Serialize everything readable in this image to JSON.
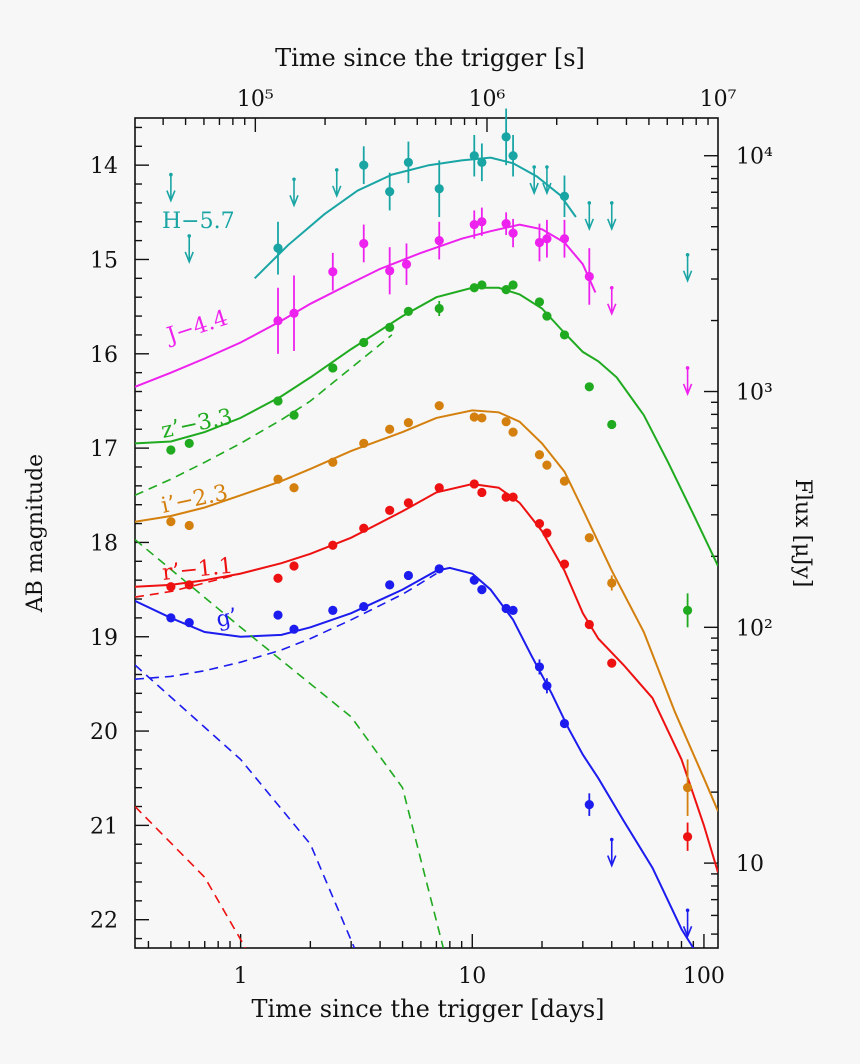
{
  "chart_data": {
    "type": "scatter",
    "xlabel": "Time since the trigger [days]",
    "ylabel": "AB magnitude",
    "x2label": "Time since the trigger [s]",
    "y2label": "Flux [μJy]",
    "x_scale": "log",
    "xlim": [
      0.35,
      115
    ],
    "ylim": [
      22.3,
      13.5
    ],
    "x_ticks": [
      "1",
      "10",
      "100"
    ],
    "y_ticks": [
      "14",
      "15",
      "16",
      "17",
      "18",
      "19",
      "20",
      "21",
      "22"
    ],
    "x2_ticks": [
      "10⁵",
      "10⁶",
      "10⁷"
    ],
    "y2_ticks": [
      "10",
      "10²",
      "10³",
      "10⁴"
    ],
    "colors": {
      "H": "#1aa5a5",
      "J": "#ee22ee",
      "z": "#1faa1f",
      "i": "#d4800e",
      "r": "#ee1111",
      "g": "#1c1cee"
    },
    "series": [
      {
        "name": "H−5.7",
        "color_key": "H",
        "points": [
          [
            1.45,
            14.88,
            0.28
          ],
          [
            3.4,
            14.0,
            0.2
          ],
          [
            4.4,
            14.28,
            0.2
          ],
          [
            5.3,
            13.97,
            0.22
          ],
          [
            7.2,
            14.25,
            0.3
          ],
          [
            10.2,
            13.9,
            0.22
          ],
          [
            11,
            13.97,
            0.2
          ],
          [
            14,
            13.7,
            0.3
          ],
          [
            15,
            13.9,
            0.22
          ],
          [
            25,
            14.33,
            0.22
          ]
        ],
        "upper_limits": [
          [
            0.5,
            14.1
          ],
          [
            0.6,
            14.75
          ],
          [
            1.7,
            14.15
          ],
          [
            2.6,
            14.05
          ],
          [
            18.5,
            14.02
          ],
          [
            21,
            14.02
          ],
          [
            32,
            14.4
          ],
          [
            40,
            14.4
          ],
          [
            85,
            14.95
          ]
        ],
        "model": [
          [
            1.15,
            15.2
          ],
          [
            1.6,
            14.85
          ],
          [
            2.3,
            14.52
          ],
          [
            3.2,
            14.27
          ],
          [
            4.5,
            14.1
          ],
          [
            6.5,
            14.0
          ],
          [
            9,
            13.95
          ],
          [
            12,
            13.92
          ],
          [
            15,
            13.98
          ],
          [
            19,
            14.12
          ],
          [
            24,
            14.32
          ],
          [
            28,
            14.55
          ]
        ]
      },
      {
        "name": "J−4.4",
        "color_key": "J",
        "points": [
          [
            1.45,
            15.65,
            0.35
          ],
          [
            1.7,
            15.57,
            0.4
          ],
          [
            2.5,
            15.13,
            0.2
          ],
          [
            3.4,
            14.83,
            0.2
          ],
          [
            4.4,
            15.12,
            0.25
          ],
          [
            5.2,
            15.05,
            0.22
          ],
          [
            7.2,
            14.8,
            0.2
          ],
          [
            10.2,
            14.63,
            0.15
          ],
          [
            11,
            14.6,
            0.15
          ],
          [
            14,
            14.62,
            0.12
          ],
          [
            15,
            14.72,
            0.15
          ],
          [
            19.5,
            14.82,
            0.2
          ],
          [
            21,
            14.78,
            0.2
          ],
          [
            25,
            14.78,
            0.2
          ],
          [
            32,
            15.18,
            0.3
          ]
        ],
        "upper_limits": [
          [
            40,
            15.3
          ],
          [
            85,
            16.15
          ]
        ],
        "model": [
          [
            0.35,
            16.35
          ],
          [
            0.5,
            16.2
          ],
          [
            0.7,
            16.05
          ],
          [
            1,
            15.88
          ],
          [
            1.5,
            15.65
          ],
          [
            2,
            15.47
          ],
          [
            3,
            15.25
          ],
          [
            4,
            15.1
          ],
          [
            6,
            14.93
          ],
          [
            9,
            14.78
          ],
          [
            12,
            14.7
          ],
          [
            16,
            14.63
          ],
          [
            20,
            14.68
          ],
          [
            25,
            14.82
          ],
          [
            30,
            15.05
          ],
          [
            34,
            15.35
          ]
        ]
      },
      {
        "name": "z’−3.3",
        "color_key": "z",
        "points": [
          [
            0.5,
            17.02,
            0.05
          ],
          [
            0.6,
            16.95,
            0.05
          ],
          [
            1.45,
            16.5,
            0.05
          ],
          [
            1.7,
            16.65,
            0.06
          ],
          [
            2.5,
            16.15,
            0.05
          ],
          [
            3.4,
            15.88,
            0.05
          ],
          [
            4.4,
            15.72,
            0.05
          ],
          [
            5.3,
            15.55,
            0.05
          ],
          [
            7.2,
            15.52,
            0.08
          ],
          [
            10.2,
            15.3,
            0.05
          ],
          [
            11,
            15.27,
            0.05
          ],
          [
            14,
            15.32,
            0.05
          ],
          [
            15,
            15.27,
            0.05
          ],
          [
            19.5,
            15.45,
            0.05
          ],
          [
            21,
            15.6,
            0.05
          ],
          [
            25,
            15.8,
            0.05
          ],
          [
            32,
            16.35,
            0.05
          ],
          [
            40,
            16.75,
            0.05
          ],
          [
            85,
            18.72,
            0.18
          ]
        ],
        "model": [
          [
            0.35,
            16.95
          ],
          [
            0.5,
            16.93
          ],
          [
            0.7,
            16.83
          ],
          [
            1,
            16.68
          ],
          [
            1.5,
            16.45
          ],
          [
            2,
            16.25
          ],
          [
            3,
            15.95
          ],
          [
            5,
            15.6
          ],
          [
            7,
            15.4
          ],
          [
            10,
            15.3
          ],
          [
            13,
            15.3
          ],
          [
            16,
            15.37
          ],
          [
            20,
            15.52
          ],
          [
            25,
            15.78
          ],
          [
            30,
            15.98
          ],
          [
            35,
            16.08
          ],
          [
            42,
            16.25
          ],
          [
            55,
            16.65
          ],
          [
            70,
            17.15
          ],
          [
            90,
            17.7
          ],
          [
            115,
            18.25
          ]
        ],
        "model_dashed": [
          [
            0.35,
            17.5
          ],
          [
            0.5,
            17.33
          ],
          [
            0.7,
            17.15
          ],
          [
            1,
            16.95
          ],
          [
            1.5,
            16.7
          ],
          [
            2,
            16.5
          ],
          [
            3,
            16.15
          ],
          [
            4.5,
            15.8
          ]
        ]
      },
      {
        "name": "i’−2.3",
        "color_key": "i",
        "points": [
          [
            0.5,
            17.78,
            0.05
          ],
          [
            0.6,
            17.82,
            0.05
          ],
          [
            1.45,
            17.33,
            0.05
          ],
          [
            1.7,
            17.42,
            0.05
          ],
          [
            2.5,
            17.15,
            0.05
          ],
          [
            3.4,
            16.95,
            0.05
          ],
          [
            4.4,
            16.8,
            0.05
          ],
          [
            5.3,
            16.73,
            0.05
          ],
          [
            7.2,
            16.55,
            0.06
          ],
          [
            10.2,
            16.67,
            0.05
          ],
          [
            11,
            16.68,
            0.05
          ],
          [
            14,
            16.72,
            0.05
          ],
          [
            15,
            16.83,
            0.05
          ],
          [
            19.5,
            17.07,
            0.05
          ],
          [
            21,
            17.18,
            0.05
          ],
          [
            25,
            17.35,
            0.05
          ],
          [
            32,
            17.95,
            0.05
          ],
          [
            40,
            18.43,
            0.08
          ],
          [
            85,
            20.6,
            0.3
          ]
        ],
        "model": [
          [
            0.35,
            17.78
          ],
          [
            0.5,
            17.72
          ],
          [
            0.7,
            17.63
          ],
          [
            1,
            17.5
          ],
          [
            1.5,
            17.35
          ],
          [
            2,
            17.22
          ],
          [
            3,
            17.03
          ],
          [
            5,
            16.83
          ],
          [
            7,
            16.68
          ],
          [
            10,
            16.6
          ],
          [
            13,
            16.62
          ],
          [
            16,
            16.72
          ],
          [
            20,
            16.95
          ],
          [
            25,
            17.25
          ],
          [
            30,
            17.65
          ],
          [
            40,
            18.3
          ],
          [
            55,
            18.95
          ],
          [
            75,
            19.8
          ],
          [
            100,
            20.5
          ],
          [
            115,
            20.85
          ]
        ]
      },
      {
        "name": "r’−1.1",
        "color_key": "r",
        "points": [
          [
            0.5,
            18.47,
            0.05
          ],
          [
            0.6,
            18.45,
            0.05
          ],
          [
            1.45,
            18.38,
            0.05
          ],
          [
            1.7,
            18.25,
            0.05
          ],
          [
            2.5,
            18.03,
            0.05
          ],
          [
            3.4,
            17.85,
            0.05
          ],
          [
            4.4,
            17.66,
            0.05
          ],
          [
            5.3,
            17.58,
            0.05
          ],
          [
            7.2,
            17.42,
            0.05
          ],
          [
            10.2,
            17.38,
            0.05
          ],
          [
            11,
            17.47,
            0.05
          ],
          [
            14,
            17.52,
            0.05
          ],
          [
            15,
            17.52,
            0.05
          ],
          [
            19.5,
            17.8,
            0.05
          ],
          [
            21,
            17.9,
            0.05
          ],
          [
            25,
            18.23,
            0.05
          ],
          [
            32,
            18.87,
            0.05
          ],
          [
            40,
            19.28,
            0.06
          ],
          [
            85,
            21.12,
            0.15
          ]
        ],
        "model": [
          [
            0.35,
            18.47
          ],
          [
            0.5,
            18.45
          ],
          [
            0.7,
            18.4
          ],
          [
            1,
            18.33
          ],
          [
            1.5,
            18.22
          ],
          [
            2,
            18.12
          ],
          [
            3,
            17.95
          ],
          [
            5,
            17.67
          ],
          [
            7,
            17.47
          ],
          [
            10,
            17.38
          ],
          [
            13,
            17.42
          ],
          [
            16,
            17.58
          ],
          [
            20,
            17.88
          ],
          [
            25,
            18.3
          ],
          [
            30,
            18.75
          ],
          [
            35,
            19.02
          ],
          [
            45,
            19.3
          ],
          [
            60,
            19.65
          ],
          [
            80,
            20.3
          ],
          [
            100,
            21.0
          ],
          [
            115,
            21.5
          ]
        ],
        "model_dashed": [
          [
            0.35,
            18.58
          ],
          [
            0.5,
            18.52
          ],
          [
            0.7,
            18.43
          ],
          [
            1,
            18.33
          ]
        ]
      },
      {
        "name": "g’",
        "color_key": "g",
        "points": [
          [
            0.5,
            18.8,
            0.05
          ],
          [
            0.6,
            18.85,
            0.05
          ],
          [
            1.45,
            18.77,
            0.05
          ],
          [
            1.7,
            18.92,
            0.05
          ],
          [
            2.5,
            18.72,
            0.05
          ],
          [
            3.4,
            18.68,
            0.05
          ],
          [
            4.4,
            18.45,
            0.05
          ],
          [
            5.3,
            18.35,
            0.05
          ],
          [
            7.2,
            18.28,
            0.05
          ],
          [
            10.2,
            18.4,
            0.05
          ],
          [
            11,
            18.5,
            0.05
          ],
          [
            14,
            18.7,
            0.05
          ],
          [
            15,
            18.72,
            0.05
          ],
          [
            19.5,
            19.32,
            0.08
          ],
          [
            21,
            19.52,
            0.08
          ],
          [
            25,
            19.92,
            0.05
          ],
          [
            32,
            20.78,
            0.12
          ]
        ],
        "upper_limits": [
          [
            40,
            21.15
          ],
          [
            85,
            21.9
          ]
        ],
        "model": [
          [
            0.35,
            18.62
          ],
          [
            0.5,
            18.8
          ],
          [
            0.7,
            18.95
          ],
          [
            1,
            19.0
          ],
          [
            1.5,
            18.98
          ],
          [
            2,
            18.9
          ],
          [
            3,
            18.75
          ],
          [
            5,
            18.5
          ],
          [
            7,
            18.3
          ],
          [
            8,
            18.27
          ],
          [
            10,
            18.33
          ],
          [
            12,
            18.5
          ],
          [
            15,
            18.82
          ],
          [
            18,
            19.2
          ],
          [
            22,
            19.6
          ],
          [
            26,
            19.97
          ],
          [
            30,
            20.25
          ],
          [
            35,
            20.5
          ],
          [
            45,
            20.95
          ],
          [
            60,
            21.45
          ],
          [
            80,
            22.1
          ],
          [
            90,
            22.3
          ]
        ],
        "model_dashed": [
          [
            0.35,
            19.45
          ],
          [
            0.5,
            19.42
          ],
          [
            0.7,
            19.36
          ],
          [
            1,
            19.27
          ],
          [
            1.5,
            19.14
          ],
          [
            2,
            19.02
          ],
          [
            3,
            18.82
          ],
          [
            5,
            18.55
          ],
          [
            7,
            18.33
          ]
        ]
      }
    ],
    "decline_lines": [
      {
        "color_key": "z",
        "points": [
          [
            0.35,
            17.97
          ],
          [
            1,
            18.9
          ],
          [
            3,
            19.85
          ],
          [
            5,
            20.6
          ],
          [
            7.5,
            22.3
          ]
        ]
      },
      {
        "color_key": "g",
        "points": [
          [
            0.35,
            19.3
          ],
          [
            1,
            20.3
          ],
          [
            2,
            21.2
          ],
          [
            3.1,
            22.3
          ]
        ]
      },
      {
        "color_key": "r",
        "points": [
          [
            0.35,
            20.8
          ],
          [
            0.7,
            21.55
          ],
          [
            1.05,
            22.3
          ]
        ]
      }
    ],
    "labels": [
      "H−5.7",
      "J−4.4",
      "z’−3.3",
      "i’−2.3",
      "r’−1.1",
      "g’"
    ]
  }
}
